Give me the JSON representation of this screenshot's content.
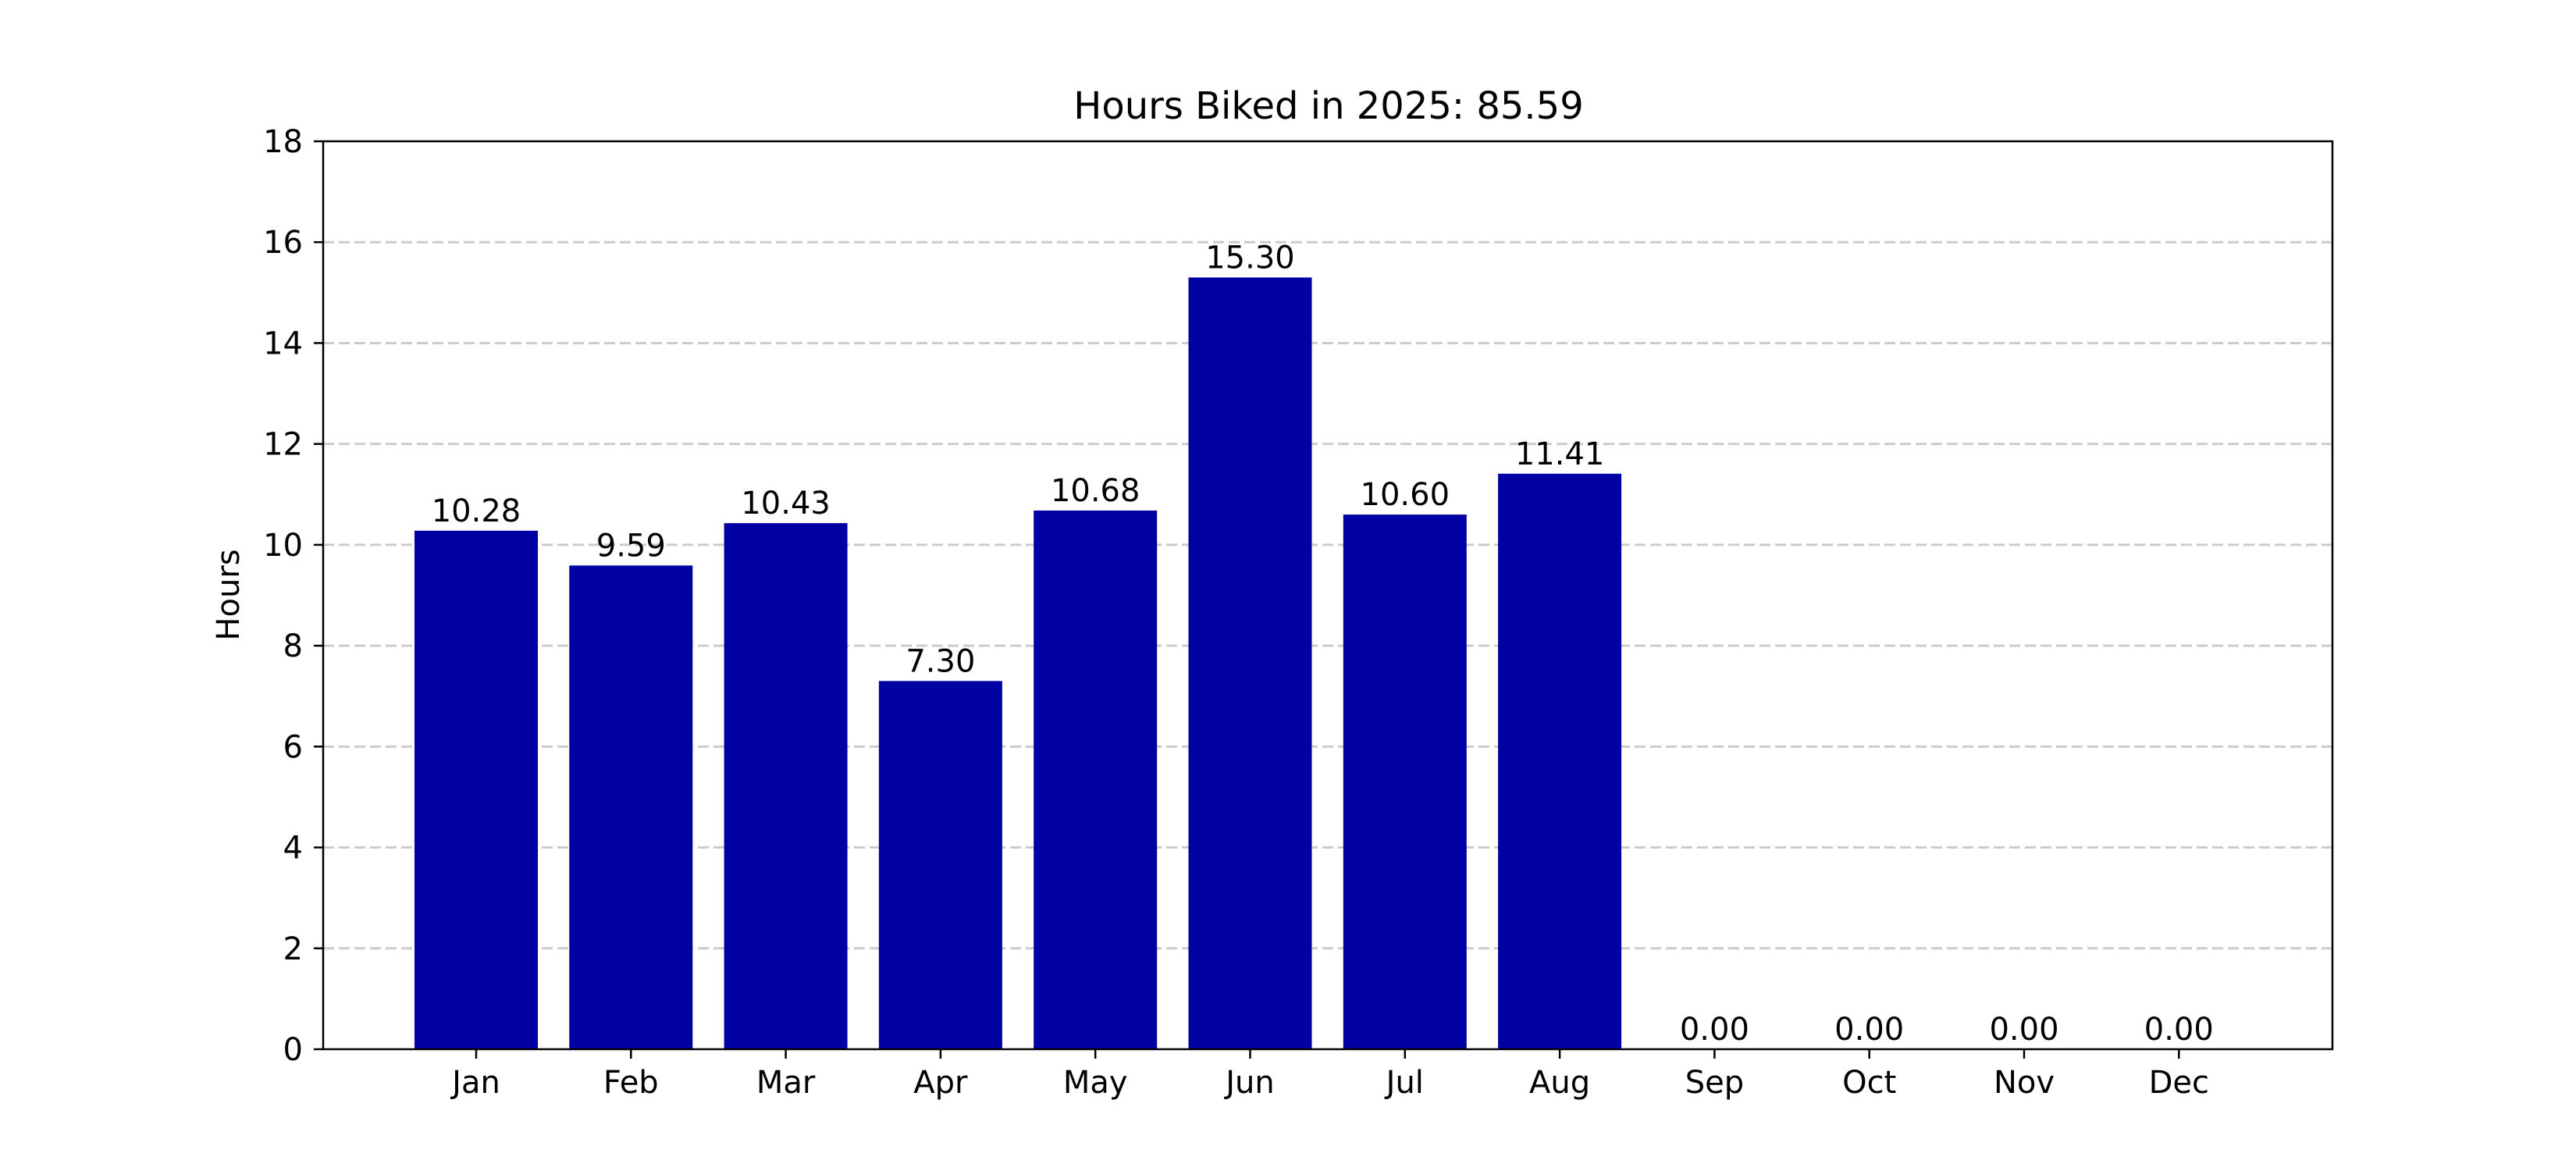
{
  "chart_data": {
    "type": "bar",
    "title": "Hours Biked in 2025: 85.59",
    "xlabel": "",
    "ylabel": "Hours",
    "categories": [
      "Jan",
      "Feb",
      "Mar",
      "Apr",
      "May",
      "Jun",
      "Jul",
      "Aug",
      "Sep",
      "Oct",
      "Nov",
      "Dec"
    ],
    "values": [
      10.28,
      9.59,
      10.43,
      7.3,
      10.68,
      15.3,
      10.6,
      11.41,
      0.0,
      0.0,
      0.0,
      0.0
    ],
    "data_labels": [
      "10.28",
      "9.59",
      "10.43",
      "7.30",
      "10.68",
      "15.30",
      "10.60",
      "11.41",
      "0.00",
      "0.00",
      "0.00",
      "0.00"
    ],
    "ylim": [
      0,
      18
    ],
    "yticks": [
      0,
      2,
      4,
      6,
      8,
      10,
      12,
      14,
      16,
      18
    ],
    "grid": "y-dashed",
    "bar_color": "#0000a3",
    "grid_color": "#cccccc"
  }
}
